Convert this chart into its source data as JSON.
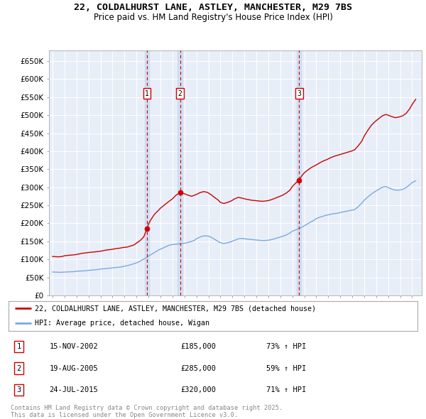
{
  "title_line1": "22, COLDALHURST LANE, ASTLEY, MANCHESTER, M29 7BS",
  "title_line2": "Price paid vs. HM Land Registry's House Price Index (HPI)",
  "ylim": [
    0,
    680000
  ],
  "yticks": [
    0,
    50000,
    100000,
    150000,
    200000,
    250000,
    300000,
    350000,
    400000,
    450000,
    500000,
    550000,
    600000,
    650000
  ],
  "ytick_labels": [
    "£0",
    "£50K",
    "£100K",
    "£150K",
    "£200K",
    "£250K",
    "£300K",
    "£350K",
    "£400K",
    "£450K",
    "£500K",
    "£550K",
    "£600K",
    "£650K"
  ],
  "xlim_start": 1994.7,
  "xlim_end": 2025.8,
  "plot_bg_color": "#e8eef8",
  "legend_label_red": "22, COLDALHURST LANE, ASTLEY, MANCHESTER, M29 7BS (detached house)",
  "legend_label_blue": "HPI: Average price, detached house, Wigan",
  "red_color": "#cc0000",
  "blue_color": "#7aaadd",
  "sale_points": [
    {
      "num": 1,
      "year": 2002.88,
      "price": 185000,
      "date": "15-NOV-2002",
      "label": "£185,000",
      "hpi": "73% ↑ HPI"
    },
    {
      "num": 2,
      "year": 2005.63,
      "price": 285000,
      "date": "19-AUG-2005",
      "label": "£285,000",
      "hpi": "59% ↑ HPI"
    },
    {
      "num": 3,
      "year": 2015.56,
      "price": 320000,
      "date": "24-JUL-2015",
      "label": "£320,000",
      "hpi": "71% ↑ HPI"
    }
  ],
  "footer_text": "Contains HM Land Registry data © Crown copyright and database right 2025.\nThis data is licensed under the Open Government Licence v3.0.",
  "hpi_red": [
    [
      1995.0,
      108000
    ],
    [
      1995.2,
      107500
    ],
    [
      1995.5,
      107000
    ],
    [
      1995.8,
      108000
    ],
    [
      1996.0,
      110000
    ],
    [
      1996.3,
      111000
    ],
    [
      1996.6,
      112000
    ],
    [
      1996.9,
      113000
    ],
    [
      1997.2,
      115000
    ],
    [
      1997.5,
      117000
    ],
    [
      1997.8,
      118000
    ],
    [
      1998.0,
      119000
    ],
    [
      1998.3,
      120000
    ],
    [
      1998.6,
      121000
    ],
    [
      1998.9,
      122000
    ],
    [
      1999.2,
      124000
    ],
    [
      1999.5,
      126000
    ],
    [
      1999.8,
      127000
    ],
    [
      2000.0,
      128000
    ],
    [
      2000.3,
      130000
    ],
    [
      2000.6,
      131000
    ],
    [
      2000.9,
      133000
    ],
    [
      2001.2,
      134000
    ],
    [
      2001.5,
      137000
    ],
    [
      2001.8,
      140000
    ],
    [
      2002.0,
      145000
    ],
    [
      2002.3,
      152000
    ],
    [
      2002.6,
      162000
    ],
    [
      2002.88,
      185000
    ],
    [
      2003.0,
      198000
    ],
    [
      2003.2,
      210000
    ],
    [
      2003.5,
      225000
    ],
    [
      2003.8,
      235000
    ],
    [
      2004.0,
      242000
    ],
    [
      2004.3,
      250000
    ],
    [
      2004.6,
      258000
    ],
    [
      2005.0,
      268000
    ],
    [
      2005.3,
      278000
    ],
    [
      2005.63,
      285000
    ],
    [
      2006.0,
      282000
    ],
    [
      2006.3,
      278000
    ],
    [
      2006.6,
      275000
    ],
    [
      2007.0,
      280000
    ],
    [
      2007.3,
      285000
    ],
    [
      2007.6,
      288000
    ],
    [
      2007.9,
      286000
    ],
    [
      2008.2,
      280000
    ],
    [
      2008.5,
      272000
    ],
    [
      2008.8,
      265000
    ],
    [
      2009.0,
      258000
    ],
    [
      2009.3,
      255000
    ],
    [
      2009.6,
      258000
    ],
    [
      2009.9,
      262000
    ],
    [
      2010.2,
      268000
    ],
    [
      2010.5,
      272000
    ],
    [
      2010.8,
      270000
    ],
    [
      2011.0,
      268000
    ],
    [
      2011.3,
      266000
    ],
    [
      2011.6,
      264000
    ],
    [
      2011.9,
      263000
    ],
    [
      2012.2,
      262000
    ],
    [
      2012.5,
      261000
    ],
    [
      2012.8,
      262000
    ],
    [
      2013.0,
      263000
    ],
    [
      2013.3,
      266000
    ],
    [
      2013.6,
      270000
    ],
    [
      2013.9,
      274000
    ],
    [
      2014.2,
      278000
    ],
    [
      2014.5,
      284000
    ],
    [
      2014.8,
      292000
    ],
    [
      2015.0,
      302000
    ],
    [
      2015.3,
      312000
    ],
    [
      2015.56,
      320000
    ],
    [
      2015.8,
      332000
    ],
    [
      2016.0,
      340000
    ],
    [
      2016.3,
      348000
    ],
    [
      2016.6,
      355000
    ],
    [
      2017.0,
      362000
    ],
    [
      2017.3,
      368000
    ],
    [
      2017.6,
      373000
    ],
    [
      2017.9,
      377000
    ],
    [
      2018.2,
      382000
    ],
    [
      2018.5,
      386000
    ],
    [
      2018.8,
      389000
    ],
    [
      2019.0,
      391000
    ],
    [
      2019.3,
      394000
    ],
    [
      2019.6,
      397000
    ],
    [
      2019.9,
      400000
    ],
    [
      2020.2,
      404000
    ],
    [
      2020.5,
      415000
    ],
    [
      2020.8,
      428000
    ],
    [
      2021.0,
      442000
    ],
    [
      2021.3,
      458000
    ],
    [
      2021.6,
      472000
    ],
    [
      2021.9,
      482000
    ],
    [
      2022.2,
      490000
    ],
    [
      2022.5,
      498000
    ],
    [
      2022.8,
      502000
    ],
    [
      2023.0,
      500000
    ],
    [
      2023.3,
      496000
    ],
    [
      2023.6,
      493000
    ],
    [
      2023.9,
      495000
    ],
    [
      2024.2,
      498000
    ],
    [
      2024.5,
      505000
    ],
    [
      2024.8,
      518000
    ],
    [
      2025.0,
      530000
    ],
    [
      2025.3,
      544000
    ]
  ],
  "hpi_blue": [
    [
      1995.0,
      65000
    ],
    [
      1995.3,
      64500
    ],
    [
      1995.6,
      64000
    ],
    [
      1995.9,
      64500
    ],
    [
      1996.2,
      65000
    ],
    [
      1996.5,
      65500
    ],
    [
      1996.8,
      66000
    ],
    [
      1997.0,
      67000
    ],
    [
      1997.3,
      67500
    ],
    [
      1997.6,
      68000
    ],
    [
      1997.9,
      69000
    ],
    [
      1998.2,
      70000
    ],
    [
      1998.5,
      71000
    ],
    [
      1998.8,
      72000
    ],
    [
      1999.0,
      73000
    ],
    [
      1999.3,
      74000
    ],
    [
      1999.6,
      75000
    ],
    [
      1999.9,
      76000
    ],
    [
      2000.2,
      77000
    ],
    [
      2000.5,
      78000
    ],
    [
      2000.8,
      79500
    ],
    [
      2001.0,
      81000
    ],
    [
      2001.3,
      83000
    ],
    [
      2001.6,
      86000
    ],
    [
      2001.9,
      89000
    ],
    [
      2002.2,
      93000
    ],
    [
      2002.5,
      99000
    ],
    [
      2002.8,
      104000
    ],
    [
      2003.0,
      109000
    ],
    [
      2003.3,
      115000
    ],
    [
      2003.6,
      121000
    ],
    [
      2003.9,
      127000
    ],
    [
      2004.2,
      131000
    ],
    [
      2004.5,
      136000
    ],
    [
      2004.8,
      140000
    ],
    [
      2005.0,
      141000
    ],
    [
      2005.3,
      142000
    ],
    [
      2005.6,
      143000
    ],
    [
      2005.9,
      144000
    ],
    [
      2006.2,
      146000
    ],
    [
      2006.5,
      149000
    ],
    [
      2006.8,
      152000
    ],
    [
      2007.0,
      157000
    ],
    [
      2007.3,
      162000
    ],
    [
      2007.6,
      165000
    ],
    [
      2007.9,
      165000
    ],
    [
      2008.2,
      162000
    ],
    [
      2008.5,
      156000
    ],
    [
      2008.8,
      150000
    ],
    [
      2009.0,
      146000
    ],
    [
      2009.3,
      144000
    ],
    [
      2009.6,
      146000
    ],
    [
      2009.9,
      149000
    ],
    [
      2010.2,
      153000
    ],
    [
      2010.5,
      157000
    ],
    [
      2010.8,
      158000
    ],
    [
      2011.0,
      157000
    ],
    [
      2011.3,
      156000
    ],
    [
      2011.6,
      155000
    ],
    [
      2011.9,
      154000
    ],
    [
      2012.2,
      153000
    ],
    [
      2012.5,
      152000
    ],
    [
      2012.8,
      152500
    ],
    [
      2013.0,
      153000
    ],
    [
      2013.3,
      155000
    ],
    [
      2013.6,
      158000
    ],
    [
      2013.9,
      161000
    ],
    [
      2014.2,
      164000
    ],
    [
      2014.5,
      168000
    ],
    [
      2014.8,
      173000
    ],
    [
      2015.0,
      178000
    ],
    [
      2015.3,
      182000
    ],
    [
      2015.6,
      186000
    ],
    [
      2015.9,
      191000
    ],
    [
      2016.2,
      197000
    ],
    [
      2016.5,
      203000
    ],
    [
      2016.8,
      208000
    ],
    [
      2017.0,
      213000
    ],
    [
      2017.3,
      217000
    ],
    [
      2017.6,
      220000
    ],
    [
      2017.9,
      223000
    ],
    [
      2018.2,
      225000
    ],
    [
      2018.5,
      227000
    ],
    [
      2018.8,
      228000
    ],
    [
      2019.0,
      230000
    ],
    [
      2019.3,
      232000
    ],
    [
      2019.6,
      234000
    ],
    [
      2019.9,
      236000
    ],
    [
      2020.2,
      238000
    ],
    [
      2020.5,
      246000
    ],
    [
      2020.8,
      256000
    ],
    [
      2021.0,
      264000
    ],
    [
      2021.3,
      273000
    ],
    [
      2021.6,
      281000
    ],
    [
      2021.9,
      288000
    ],
    [
      2022.2,
      294000
    ],
    [
      2022.5,
      300000
    ],
    [
      2022.8,
      302000
    ],
    [
      2023.0,
      299000
    ],
    [
      2023.3,
      295000
    ],
    [
      2023.6,
      292000
    ],
    [
      2023.9,
      292000
    ],
    [
      2024.2,
      294000
    ],
    [
      2024.5,
      299000
    ],
    [
      2024.8,
      307000
    ],
    [
      2025.0,
      313000
    ],
    [
      2025.3,
      318000
    ]
  ]
}
